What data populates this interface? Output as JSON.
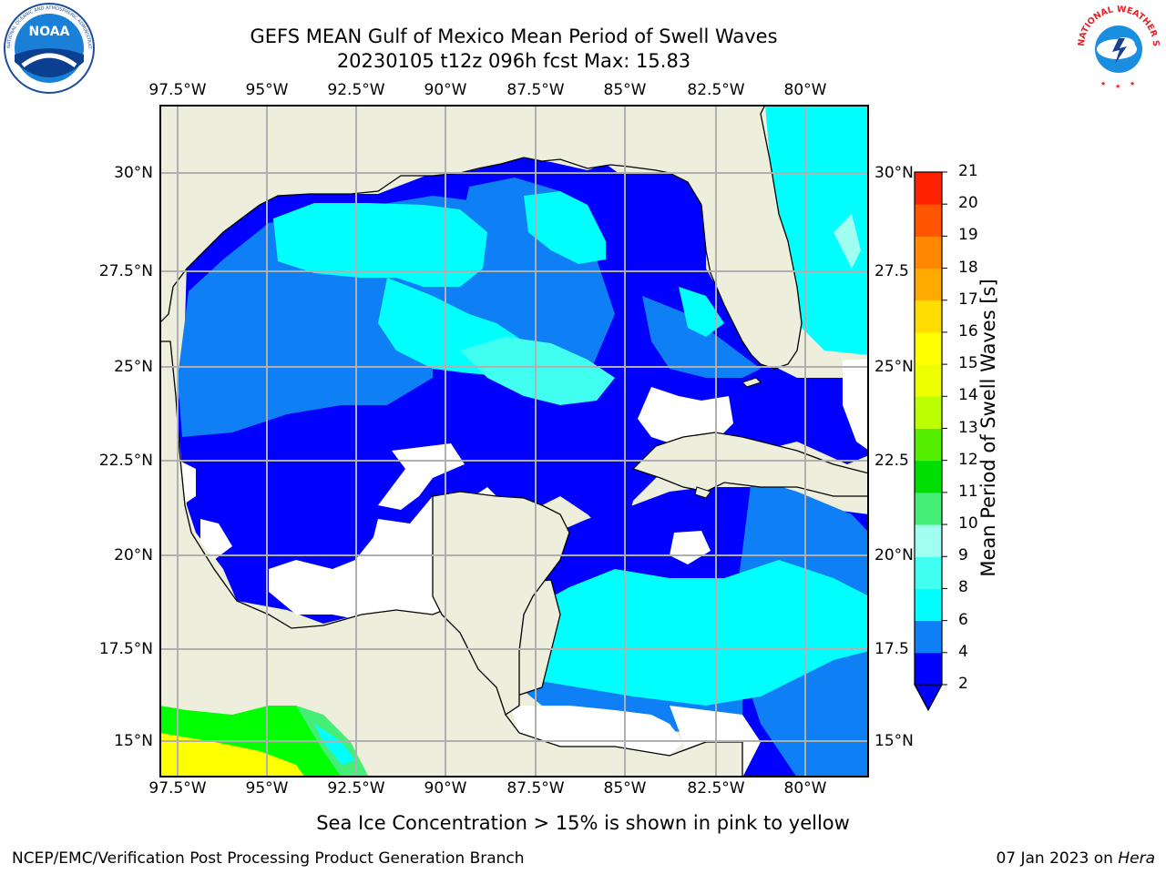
{
  "title": {
    "line1": "GEFS MEAN Gulf of Mexico Mean Period of Swell Waves",
    "line2": "20230105 t12z 096h fcst   Max: 15.83"
  },
  "logos": {
    "left": "NOAA",
    "left_ring": "NATIONAL OCEANIC AND ATMOSPHERIC ADMINISTRATION · U.S. DEPARTMENT OF COMMERCE",
    "right_ring": "NATIONAL WEATHER SERVICE"
  },
  "map": {
    "lon_labels": [
      "97.5°W",
      "95°W",
      "92.5°W",
      "90°W",
      "87.5°W",
      "85°W",
      "82.5°W",
      "80°W"
    ],
    "lat_labels_left": [
      "30°N",
      "27.5°N",
      "25°N",
      "22.5°N",
      "20°N",
      "17.5°N",
      "15°N"
    ],
    "lat_labels_right": [
      "30°N",
      "27.5",
      "25°N",
      "22.5",
      "20°N",
      "17.5",
      "15°N"
    ],
    "colors": {
      "land": "#eeeedc",
      "no_data": "#ffffff",
      "grid": "#b0b0b0"
    }
  },
  "colorbar": {
    "label": "Mean Period of Swell Waves [s]",
    "ticks": [
      "2",
      "4",
      "6",
      "8",
      "9",
      "10",
      "11",
      "12",
      "13",
      "14",
      "15",
      "16",
      "17",
      "18",
      "19",
      "20",
      "21"
    ],
    "colors": [
      "#0000ff",
      "#0f7ff5",
      "#00ffff",
      "#40fff0",
      "#a0fff0",
      "#44ee77",
      "#00dd00",
      "#55ee00",
      "#bbff00",
      "#eeff00",
      "#ffff00",
      "#ffdd00",
      "#ffaa00",
      "#ff8800",
      "#ff5500",
      "#ff2200",
      "#ff0000"
    ]
  },
  "caption": "Sea Ice Concentration > 15% is shown in pink to yellow",
  "footer": {
    "left": "NCEP/EMC/Verification Post Processing Product Generation Branch",
    "right_date": "07 Jan 2023 on ",
    "right_host": "Hera"
  }
}
